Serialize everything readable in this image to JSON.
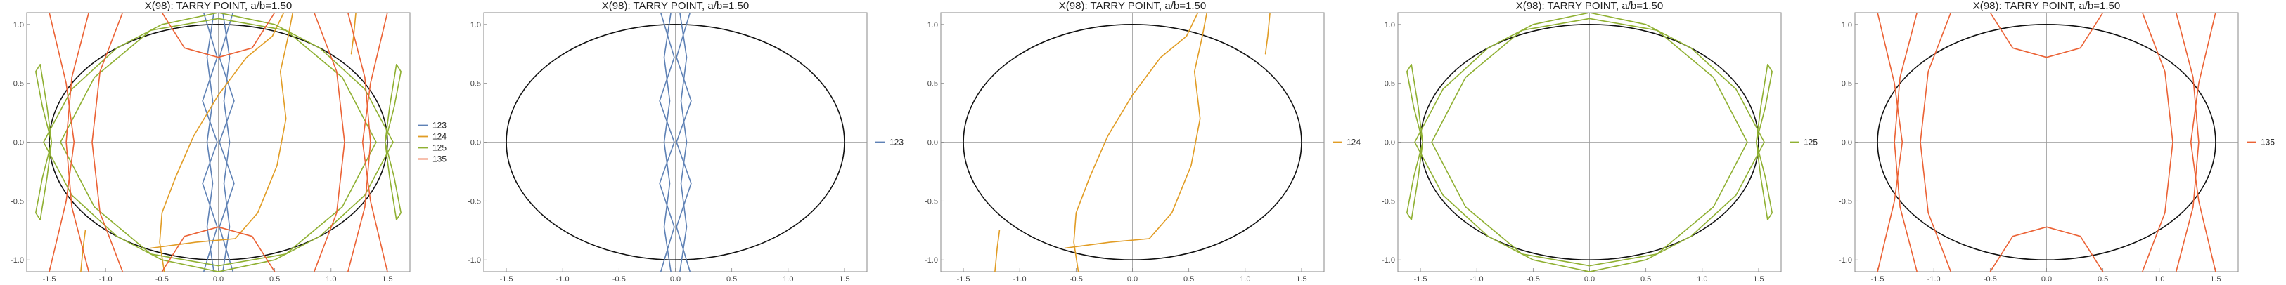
{
  "chart_data": [
    {
      "type": "line",
      "title": "X(98): TARRY POINT, a/b=1.50",
      "xlim": [
        -1.7,
        1.7
      ],
      "ylim": [
        -1.1,
        1.1
      ],
      "xticks": [
        "-1.5",
        "-1.0",
        "-0.5",
        "0.0",
        "0.5",
        "1.0",
        "1.5"
      ],
      "yticks": [
        "-1.0",
        "-0.5",
        "0.0",
        "0.5",
        "1.0"
      ],
      "ellipse": {
        "a": 1.5,
        "b": 1.0
      },
      "legend": [
        "123",
        "124",
        "125",
        "135"
      ],
      "legend_position": "right"
    },
    {
      "type": "line",
      "title": "X(98): TARRY POINT, a/b=1.50",
      "xlim": [
        -1.7,
        1.7
      ],
      "ylim": [
        -1.1,
        1.1
      ],
      "xticks": [
        "-1.5",
        "-1.0",
        "-0.5",
        "0.0",
        "0.5",
        "1.0",
        "1.5"
      ],
      "yticks": [
        "-1.0",
        "-0.5",
        "0.0",
        "0.5",
        "1.0"
      ],
      "ellipse": {
        "a": 1.5,
        "b": 1.0
      },
      "legend": [
        "123"
      ],
      "legend_position": "right"
    },
    {
      "type": "line",
      "title": "X(98): TARRY POINT, a/b=1.50",
      "xlim": [
        -1.7,
        1.7
      ],
      "ylim": [
        -1.1,
        1.1
      ],
      "xticks": [
        "-1.5",
        "-1.0",
        "-0.5",
        "0.0",
        "0.5",
        "1.0",
        "1.5"
      ],
      "yticks": [
        "-1.0",
        "-0.5",
        "0.0",
        "0.5",
        "1.0"
      ],
      "ellipse": {
        "a": 1.5,
        "b": 1.0
      },
      "legend": [
        "124"
      ],
      "legend_position": "right"
    },
    {
      "type": "line",
      "title": "X(98): TARRY POINT, a/b=1.50",
      "xlim": [
        -1.7,
        1.7
      ],
      "ylim": [
        -1.1,
        1.1
      ],
      "xticks": [
        "-1.5",
        "-1.0",
        "-0.5",
        "0.0",
        "0.5",
        "1.0",
        "1.5"
      ],
      "yticks": [
        "-1.0",
        "-0.5",
        "0.0",
        "0.5",
        "1.0"
      ],
      "ellipse": {
        "a": 1.5,
        "b": 1.0
      },
      "legend": [
        "125"
      ],
      "legend_position": "right"
    },
    {
      "type": "line",
      "title": "X(98): TARRY POINT, a/b=1.50",
      "xlim": [
        -1.7,
        1.7
      ],
      "ylim": [
        -1.1,
        1.1
      ],
      "xticks": [
        "-1.5",
        "-1.0",
        "-0.5",
        "0.0",
        "0.5",
        "1.0",
        "1.5"
      ],
      "yticks": [
        "-1.0",
        "-0.5",
        "0.0",
        "0.5",
        "1.0"
      ],
      "ellipse": {
        "a": 1.5,
        "b": 1.0
      },
      "legend": [
        "135"
      ],
      "legend_position": "right"
    }
  ],
  "curves": {
    "123": {
      "color": "#5E81B5",
      "lines": [
        [
          [
            -0.13,
            -1.1
          ],
          [
            -0.01,
            -0.72
          ],
          [
            -0.14,
            -0.35
          ],
          [
            -0.01,
            0.0
          ],
          [
            -0.14,
            0.35
          ],
          [
            -0.01,
            0.72
          ],
          [
            -0.13,
            1.1
          ]
        ],
        [
          [
            0.13,
            -1.1
          ],
          [
            0.01,
            -0.72
          ],
          [
            0.14,
            -0.35
          ],
          [
            0.01,
            0.0
          ],
          [
            0.14,
            0.35
          ],
          [
            0.01,
            0.72
          ],
          [
            0.13,
            1.1
          ]
        ],
        [
          [
            -0.04,
            -1.1
          ],
          [
            -0.1,
            -0.72
          ],
          [
            -0.05,
            -0.35
          ],
          [
            -0.1,
            0.0
          ],
          [
            -0.05,
            0.35
          ],
          [
            -0.1,
            0.72
          ],
          [
            -0.04,
            1.1
          ]
        ],
        [
          [
            0.04,
            -1.1
          ],
          [
            0.1,
            -0.72
          ],
          [
            0.05,
            -0.35
          ],
          [
            0.1,
            0.0
          ],
          [
            0.05,
            0.35
          ],
          [
            0.1,
            0.72
          ],
          [
            0.04,
            1.1
          ]
        ]
      ]
    },
    "124": {
      "color": "#E19C24",
      "lines": [
        [
          [
            -0.48,
            -1.1
          ],
          [
            -0.52,
            -0.85
          ],
          [
            -0.5,
            -0.6
          ],
          [
            -0.38,
            -0.3
          ],
          [
            -0.22,
            0.05
          ],
          [
            0.0,
            0.4
          ],
          [
            0.25,
            0.72
          ],
          [
            0.48,
            0.9
          ],
          [
            0.58,
            1.1
          ]
        ],
        [
          [
            0.15,
            -0.82
          ],
          [
            0.35,
            -0.6
          ],
          [
            0.52,
            -0.2
          ],
          [
            0.6,
            0.2
          ],
          [
            0.55,
            0.6
          ],
          [
            0.62,
            0.9
          ],
          [
            0.66,
            1.1
          ]
        ],
        [
          [
            -1.22,
            -1.1
          ],
          [
            -1.2,
            -0.9
          ],
          [
            -1.18,
            -0.75
          ]
        ],
        [
          [
            1.18,
            0.75
          ],
          [
            1.2,
            0.9
          ],
          [
            1.22,
            1.1
          ]
        ],
        [
          [
            -0.6,
            -0.9
          ],
          [
            -0.2,
            -0.85
          ],
          [
            0.15,
            -0.82
          ]
        ]
      ]
    },
    "125": {
      "color": "#8FB032",
      "lines": [
        [
          [
            -1.48,
            0.0
          ],
          [
            -1.56,
            0.3
          ],
          [
            -1.62,
            0.6
          ],
          [
            -1.58,
            0.66
          ],
          [
            -1.52,
            0.3
          ],
          [
            -1.48,
            0.0
          ],
          [
            -1.52,
            -0.3
          ],
          [
            -1.58,
            -0.66
          ],
          [
            -1.62,
            -0.6
          ],
          [
            -1.56,
            -0.3
          ],
          [
            -1.48,
            0.0
          ]
        ],
        [
          [
            1.48,
            0.0
          ],
          [
            1.56,
            0.3
          ],
          [
            1.62,
            0.6
          ],
          [
            1.58,
            0.66
          ],
          [
            1.52,
            0.3
          ],
          [
            1.48,
            0.0
          ],
          [
            1.52,
            -0.3
          ],
          [
            1.58,
            -0.66
          ],
          [
            1.62,
            -0.6
          ],
          [
            1.56,
            -0.3
          ],
          [
            1.48,
            0.0
          ]
        ],
        [
          [
            -1.55,
            0.0
          ],
          [
            -1.3,
            0.45
          ],
          [
            -0.9,
            0.8
          ],
          [
            -0.5,
            1.0
          ],
          [
            0.0,
            1.1
          ]
        ],
        [
          [
            -1.55,
            0.0
          ],
          [
            -1.3,
            -0.45
          ],
          [
            -0.9,
            -0.8
          ],
          [
            -0.5,
            -1.0
          ],
          [
            0.0,
            -1.1
          ]
        ],
        [
          [
            1.55,
            0.0
          ],
          [
            1.3,
            0.45
          ],
          [
            0.9,
            0.8
          ],
          [
            0.5,
            1.0
          ],
          [
            0.0,
            1.1
          ]
        ],
        [
          [
            1.55,
            0.0
          ],
          [
            1.3,
            -0.45
          ],
          [
            0.9,
            -0.8
          ],
          [
            0.5,
            -1.0
          ],
          [
            0.0,
            -1.1
          ]
        ],
        [
          [
            -1.4,
            0.0
          ],
          [
            -1.1,
            0.55
          ],
          [
            -0.6,
            0.95
          ],
          [
            0.0,
            1.05
          ],
          [
            0.6,
            0.95
          ],
          [
            1.1,
            0.55
          ],
          [
            1.4,
            0.0
          ]
        ],
        [
          [
            -1.4,
            0.0
          ],
          [
            -1.1,
            -0.55
          ],
          [
            -0.6,
            -0.95
          ],
          [
            0.0,
            -1.05
          ],
          [
            0.6,
            -0.95
          ],
          [
            1.1,
            -0.55
          ],
          [
            1.4,
            0.0
          ]
        ]
      ]
    },
    "135": {
      "color": "#EB6235",
      "lines": [
        [
          [
            -1.5,
            1.1
          ],
          [
            -1.35,
            0.5
          ],
          [
            -1.28,
            0.0
          ],
          [
            -1.35,
            -0.5
          ],
          [
            -1.5,
            -1.1
          ]
        ],
        [
          [
            1.5,
            1.1
          ],
          [
            1.35,
            0.5
          ],
          [
            1.28,
            0.0
          ],
          [
            1.35,
            -0.5
          ],
          [
            1.5,
            -1.1
          ]
        ],
        [
          [
            -1.15,
            1.1
          ],
          [
            -1.3,
            0.55
          ],
          [
            -1.35,
            0.0
          ],
          [
            -1.3,
            -0.55
          ],
          [
            -1.15,
            -1.1
          ]
        ],
        [
          [
            1.15,
            1.1
          ],
          [
            1.3,
            0.55
          ],
          [
            1.35,
            0.0
          ],
          [
            1.3,
            -0.55
          ],
          [
            1.15,
            -1.1
          ]
        ],
        [
          [
            -0.85,
            1.1
          ],
          [
            -1.05,
            0.6
          ],
          [
            -1.12,
            0.0
          ],
          [
            -1.05,
            -0.6
          ],
          [
            -0.85,
            -1.1
          ]
        ],
        [
          [
            0.85,
            1.1
          ],
          [
            1.05,
            0.6
          ],
          [
            1.12,
            0.0
          ],
          [
            1.05,
            -0.6
          ],
          [
            0.85,
            -1.1
          ]
        ],
        [
          [
            -0.5,
            1.1
          ],
          [
            -0.3,
            0.8
          ],
          [
            0.0,
            0.72
          ],
          [
            0.3,
            0.8
          ],
          [
            0.5,
            1.1
          ]
        ],
        [
          [
            -0.5,
            -1.1
          ],
          [
            -0.3,
            -0.8
          ],
          [
            0.0,
            -0.72
          ],
          [
            0.3,
            -0.8
          ],
          [
            0.5,
            -1.1
          ]
        ]
      ]
    }
  }
}
